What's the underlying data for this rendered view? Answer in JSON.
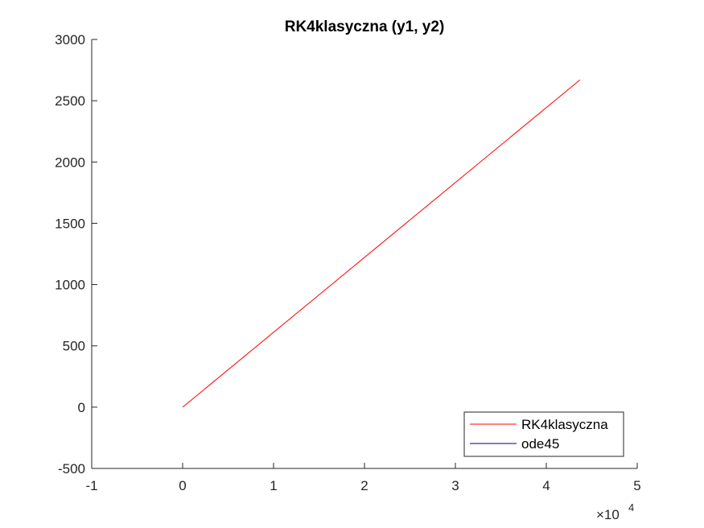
{
  "chart_data": {
    "type": "line",
    "title": "RK4klasyczna (y1, y2)",
    "xlabel": "",
    "ylabel": "",
    "xlim": [
      -10000,
      50000
    ],
    "ylim": [
      -500,
      3000
    ],
    "x_ticks": [
      -10000,
      0,
      10000,
      20000,
      30000,
      40000,
      50000
    ],
    "x_tick_labels": [
      "-1",
      "0",
      "1",
      "2",
      "3",
      "4",
      "5"
    ],
    "x_exponent": {
      "base": "×10",
      "power": "4"
    },
    "y_ticks": [
      -500,
      0,
      500,
      1000,
      1500,
      2000,
      2500,
      3000
    ],
    "y_tick_labels": [
      "-500",
      "0",
      "500",
      "1000",
      "1500",
      "2000",
      "2500",
      "3000"
    ],
    "grid": false,
    "legend_position": "bottom-right",
    "series": [
      {
        "name": "RK4klasyczna",
        "color": "#ff0000",
        "x": [
          0,
          43700
        ],
        "y": [
          0,
          2670
        ]
      },
      {
        "name": "ode45",
        "color": "#000080",
        "x": [],
        "y": []
      }
    ]
  }
}
